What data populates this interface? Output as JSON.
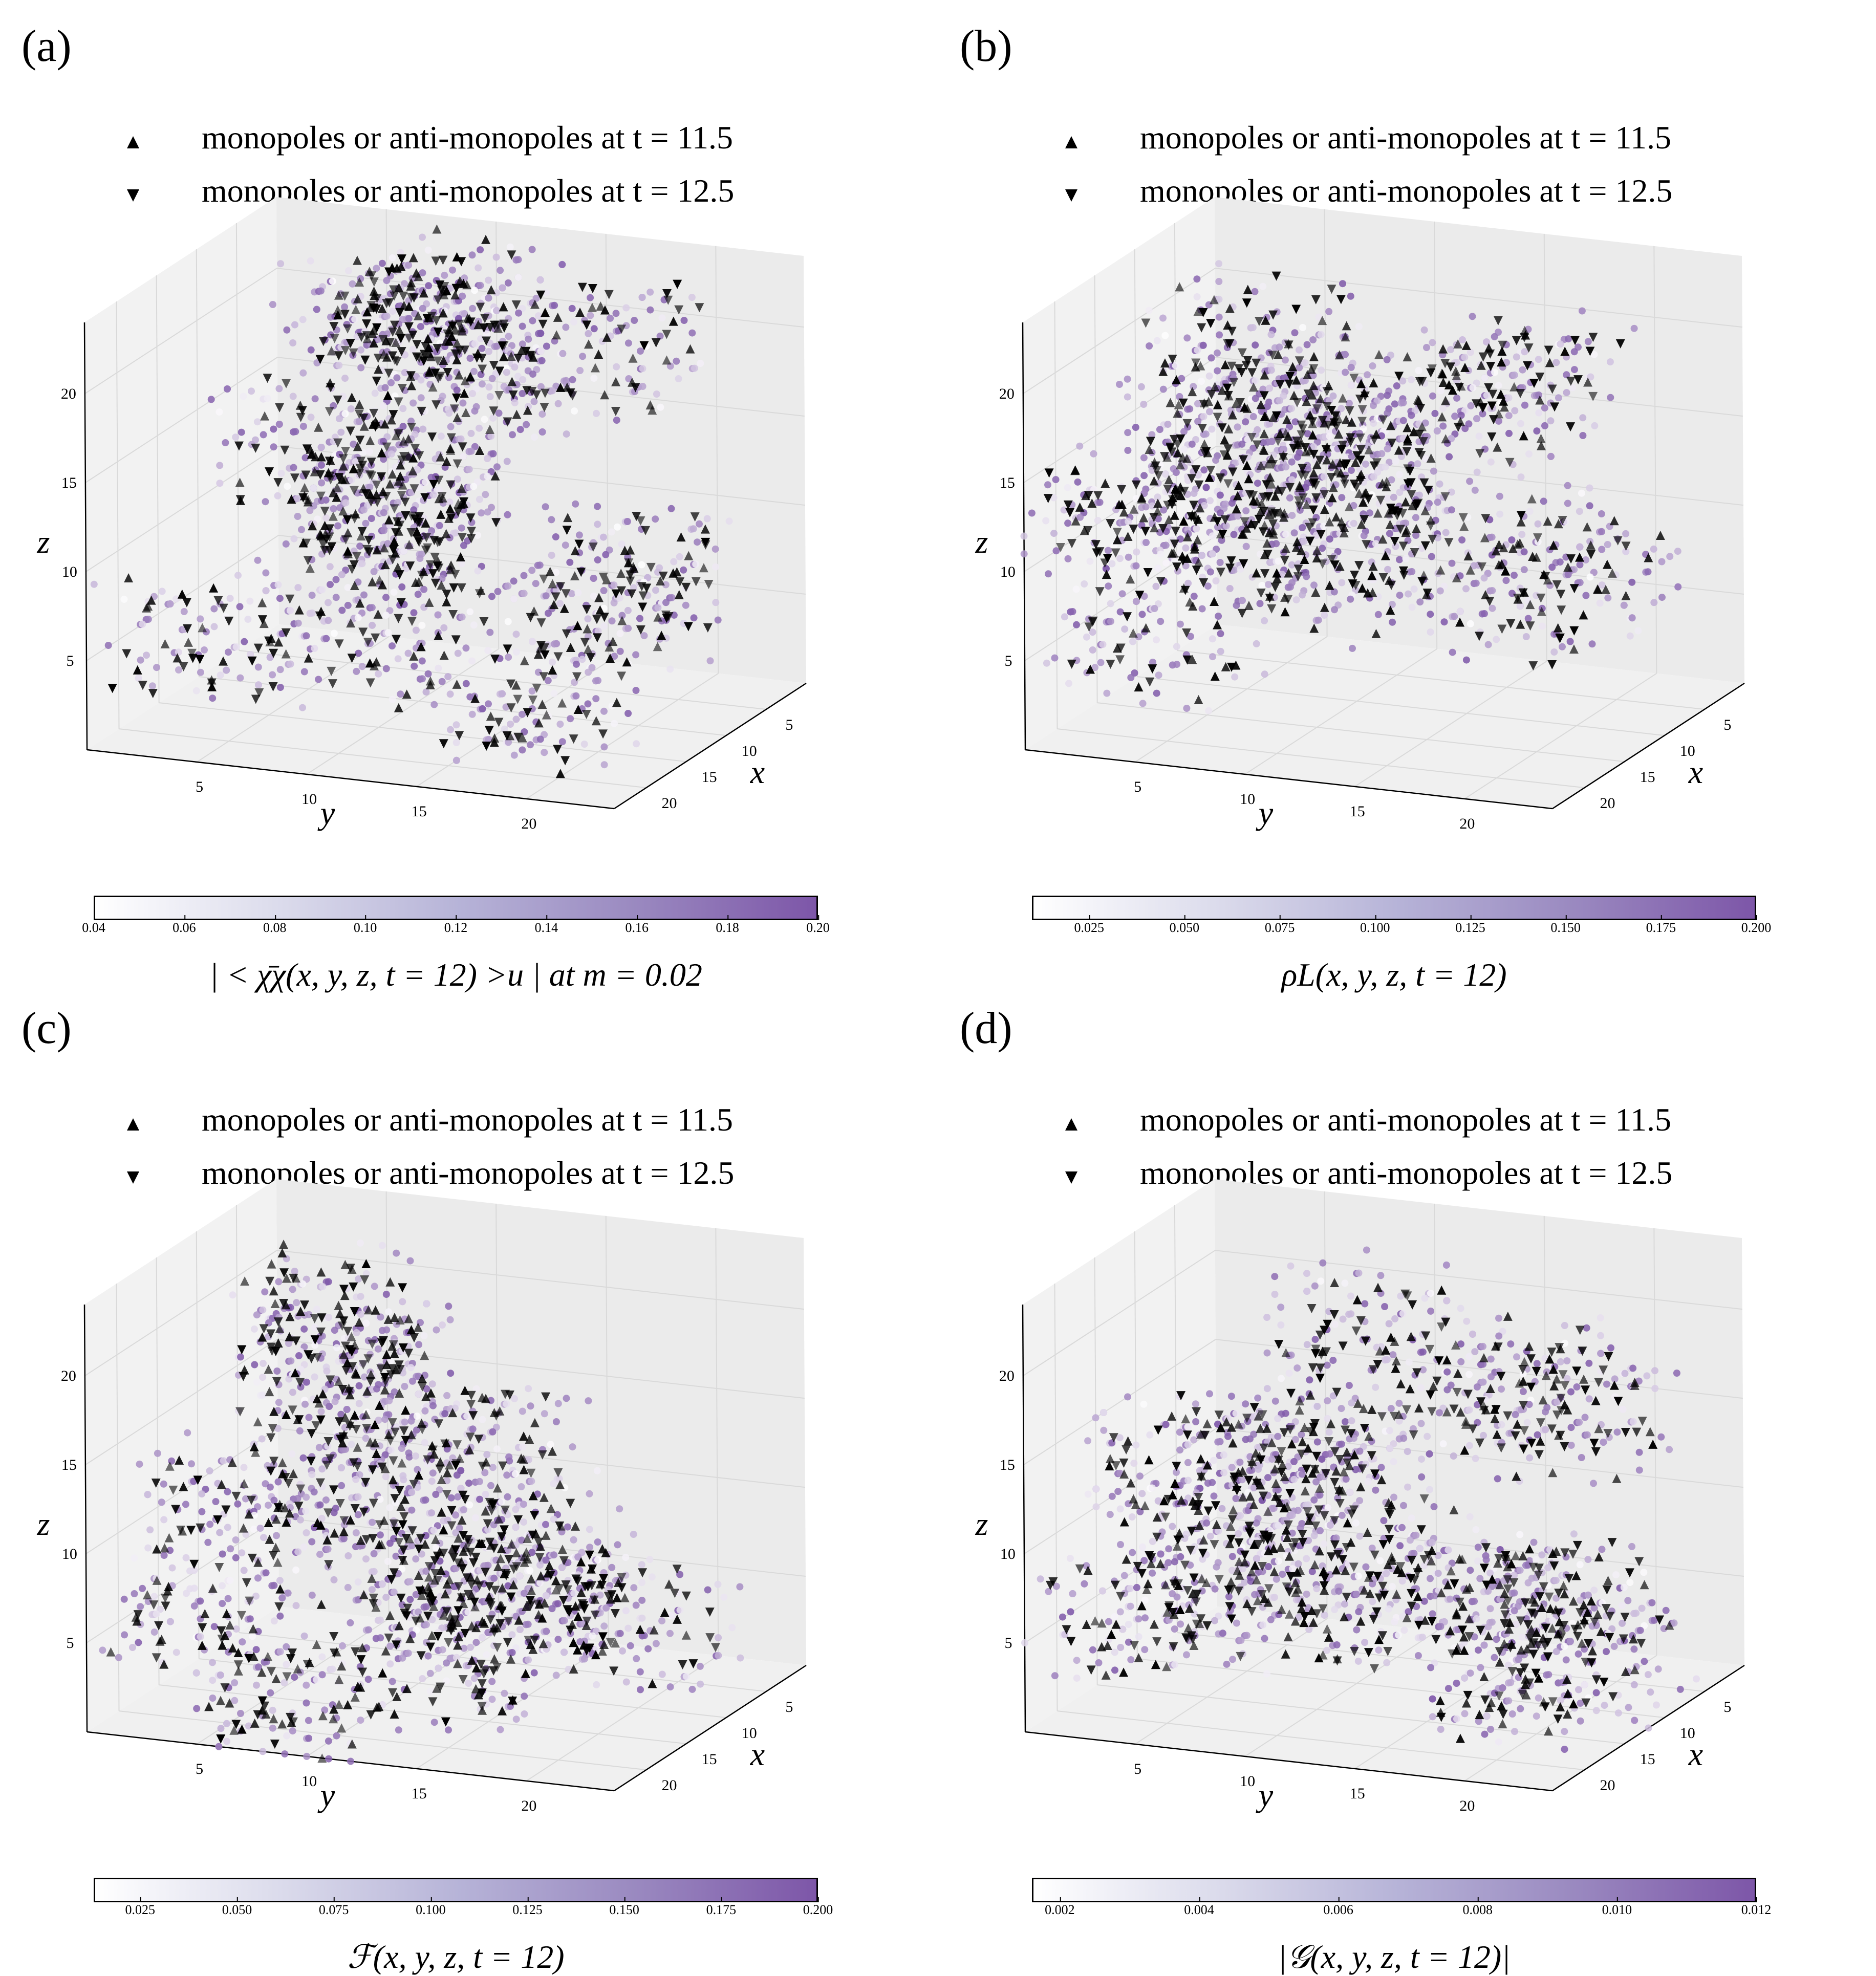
{
  "chart_data": [
    {
      "type": "scatter",
      "panel_label": "(a)",
      "legend": [
        {
          "marker": "triangle-up",
          "label": "monopoles or anti-monopoles at t = 11.5"
        },
        {
          "marker": "triangle-down",
          "label": "monopoles or anti-monopoles at t = 12.5"
        }
      ],
      "axes": {
        "xlabel": "x",
        "ylabel": "y",
        "zlabel": "z",
        "xticks": [
          "5",
          "10",
          "15",
          "20"
        ],
        "yticks": [
          "5",
          "10",
          "15",
          "20"
        ],
        "zticks": [
          "5",
          "10",
          "15",
          "20"
        ],
        "xlim": [
          0,
          24
        ],
        "ylim": [
          0,
          24
        ],
        "zlim": [
          0,
          24
        ]
      },
      "colorbar": {
        "label": "| < χ̄χ(x, y, z, t = 12) >u | at m = 0.02",
        "ticks": [
          "0.04",
          "0.06",
          "0.08",
          "0.10",
          "0.12",
          "0.14",
          "0.16",
          "0.18",
          "0.20"
        ],
        "range": [
          0.04,
          0.2
        ],
        "cmap": "Purples"
      },
      "seed": 11
    },
    {
      "type": "scatter",
      "panel_label": "(b)",
      "legend": [
        {
          "marker": "triangle-up",
          "label": "monopoles or anti-monopoles at t = 11.5"
        },
        {
          "marker": "triangle-down",
          "label": "monopoles or anti-monopoles at t = 12.5"
        }
      ],
      "axes": {
        "xlabel": "x",
        "ylabel": "y",
        "zlabel": "z",
        "xticks": [
          "5",
          "10",
          "15",
          "20"
        ],
        "yticks": [
          "5",
          "10",
          "15",
          "20"
        ],
        "zticks": [
          "5",
          "10",
          "15",
          "20"
        ],
        "xlim": [
          0,
          24
        ],
        "ylim": [
          0,
          24
        ],
        "zlim": [
          0,
          24
        ]
      },
      "colorbar": {
        "label": "ρL(x, y, z, t = 12)",
        "ticks": [
          "0.025",
          "0.050",
          "0.075",
          "0.100",
          "0.125",
          "0.150",
          "0.175",
          "0.200"
        ],
        "range": [
          0.01,
          0.2
        ],
        "cmap": "Purples"
      },
      "seed": 23
    },
    {
      "type": "scatter",
      "panel_label": "(c)",
      "legend": [
        {
          "marker": "triangle-up",
          "label": "monopoles or anti-monopoles at t = 11.5"
        },
        {
          "marker": "triangle-down",
          "label": "monopoles or anti-monopoles at t = 12.5"
        }
      ],
      "axes": {
        "xlabel": "x",
        "ylabel": "y",
        "zlabel": "z",
        "xticks": [
          "5",
          "10",
          "15",
          "20"
        ],
        "yticks": [
          "5",
          "10",
          "15",
          "20"
        ],
        "zticks": [
          "5",
          "10",
          "15",
          "20"
        ],
        "xlim": [
          0,
          24
        ],
        "ylim": [
          0,
          24
        ],
        "zlim": [
          0,
          24
        ]
      },
      "colorbar": {
        "label": "ℱ(x, y, z, t = 12)",
        "ticks": [
          "0.025",
          "0.050",
          "0.075",
          "0.100",
          "0.125",
          "0.150",
          "0.175",
          "0.200"
        ],
        "range": [
          0.013,
          0.2
        ],
        "cmap": "Purples"
      },
      "seed": 37
    },
    {
      "type": "scatter",
      "panel_label": "(d)",
      "legend": [
        {
          "marker": "triangle-up",
          "label": "monopoles or anti-monopoles at t = 11.5"
        },
        {
          "marker": "triangle-down",
          "label": "monopoles or anti-monopoles at t = 12.5"
        }
      ],
      "axes": {
        "xlabel": "x",
        "ylabel": "y",
        "zlabel": "z",
        "xticks": [
          "5",
          "10",
          "15",
          "20"
        ],
        "yticks": [
          "5",
          "10",
          "15",
          "20"
        ],
        "zticks": [
          "5",
          "10",
          "15",
          "20"
        ],
        "xlim": [
          0,
          24
        ],
        "ylim": [
          0,
          24
        ],
        "zlim": [
          0,
          24
        ]
      },
      "colorbar": {
        "label": "|𝒢(x, y, z, t = 12)|",
        "ticks": [
          "0.002",
          "0.004",
          "0.006",
          "0.008",
          "0.010",
          "0.012"
        ],
        "range": [
          0.0016,
          0.012
        ],
        "cmap": "Purples"
      },
      "seed": 53
    }
  ]
}
